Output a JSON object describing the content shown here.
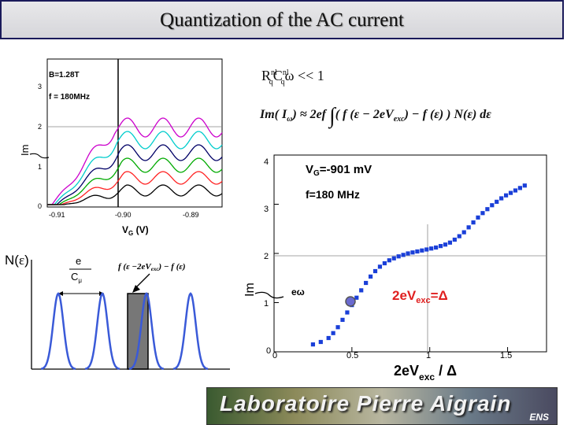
{
  "title": "Quantization of the AC current",
  "left_plot": {
    "field_label": "B=1.28T",
    "freq_label": "f = 180MHz",
    "y_ticks": [
      "0",
      "1",
      "2",
      "3"
    ],
    "x_ticks": [
      "-0.91",
      "-0.90",
      "-0.89"
    ],
    "xlabel_main": "V",
    "xlabel_sub": "G",
    "xlabel_unit": " (V)",
    "ylabel": "Im",
    "axis_hidden_symbol": "eω",
    "colors": [
      "#cc00cc",
      "#00cccc",
      "#000066",
      "#00aa00",
      "#ff2222",
      "#000000"
    ]
  },
  "formula_top": {
    "r": "R",
    "r_sup": "nl",
    "r_sub": "q",
    "c": "C",
    "c_sup": "nl",
    "c_sub": "q",
    "rest": "ω << 1"
  },
  "formula_main": {
    "lhs": "Im( I",
    "lhs_sub": "ω",
    "mid": ") ≈ 2ef",
    "integrand": "( f (ε − 2eV",
    "integrand_sub": "exc",
    "integrand_tail": ") − f (ε) )  N(ε) dε"
  },
  "right_plot": {
    "vg_label_main": "V",
    "vg_label_sub": "G",
    "vg_label_value": "=-901 mV",
    "freq_label": "f=180 MHz",
    "annotation_main": "2eV",
    "annotation_sub": "exc",
    "annotation_tail": "=Δ",
    "y_ticks": [
      "0",
      "1",
      "2",
      "3",
      "4"
    ],
    "x_ticks": [
      "0",
      "0.5",
      "1",
      "1.5"
    ],
    "xlabel_main": "2eV",
    "xlabel_sub": "exc",
    "xlabel_tail": " / Δ",
    "ylabel": "Im",
    "marker_color": "#1a3fd8",
    "annotation_color": "#e02020"
  },
  "chart_data": {
    "type": "scatter",
    "series": [
      {
        "x": [
          0.25,
          0.3,
          0.35,
          0.38,
          0.41,
          0.44,
          0.47,
          0.5,
          0.53,
          0.56,
          0.59,
          0.62,
          0.65,
          0.68,
          0.71,
          0.74,
          0.77,
          0.8,
          0.83,
          0.86,
          0.89,
          0.92,
          0.95,
          0.98,
          1.01,
          1.04,
          1.07,
          1.1,
          1.13,
          1.16,
          1.19,
          1.22,
          1.25,
          1.28,
          1.31,
          1.34,
          1.37,
          1.4,
          1.43,
          1.46,
          1.49,
          1.52,
          1.55,
          1.58,
          1.61
        ],
        "y": [
          0.15,
          0.2,
          0.28,
          0.38,
          0.5,
          0.65,
          0.8,
          0.95,
          1.1,
          1.25,
          1.4,
          1.53,
          1.64,
          1.73,
          1.8,
          1.86,
          1.9,
          1.94,
          1.97,
          2.0,
          2.02,
          2.04,
          2.06,
          2.08,
          2.1,
          2.12,
          2.15,
          2.18,
          2.22,
          2.28,
          2.35,
          2.43,
          2.53,
          2.63,
          2.73,
          2.82,
          2.9,
          2.98,
          3.05,
          3.12,
          3.18,
          3.23,
          3.28,
          3.33,
          3.38
        ]
      }
    ],
    "xlim": [
      0,
      1.75
    ],
    "ylim": [
      0,
      4
    ],
    "xlabel": "2eVexc / Δ",
    "ylabel": "Im"
  },
  "dos": {
    "label_main": "N(",
    "label_eps": "ε",
    "label_close": ")",
    "frac_num": "e",
    "frac_den": "C",
    "frac_den_sub": "μ",
    "f_expr": "f (ε −2eV",
    "f_expr_sub": "exc",
    "f_expr_tail": ") − f (ε)"
  },
  "logo": {
    "text": "Laboratoire Pierre Aigrain",
    "sub": "ENS"
  }
}
